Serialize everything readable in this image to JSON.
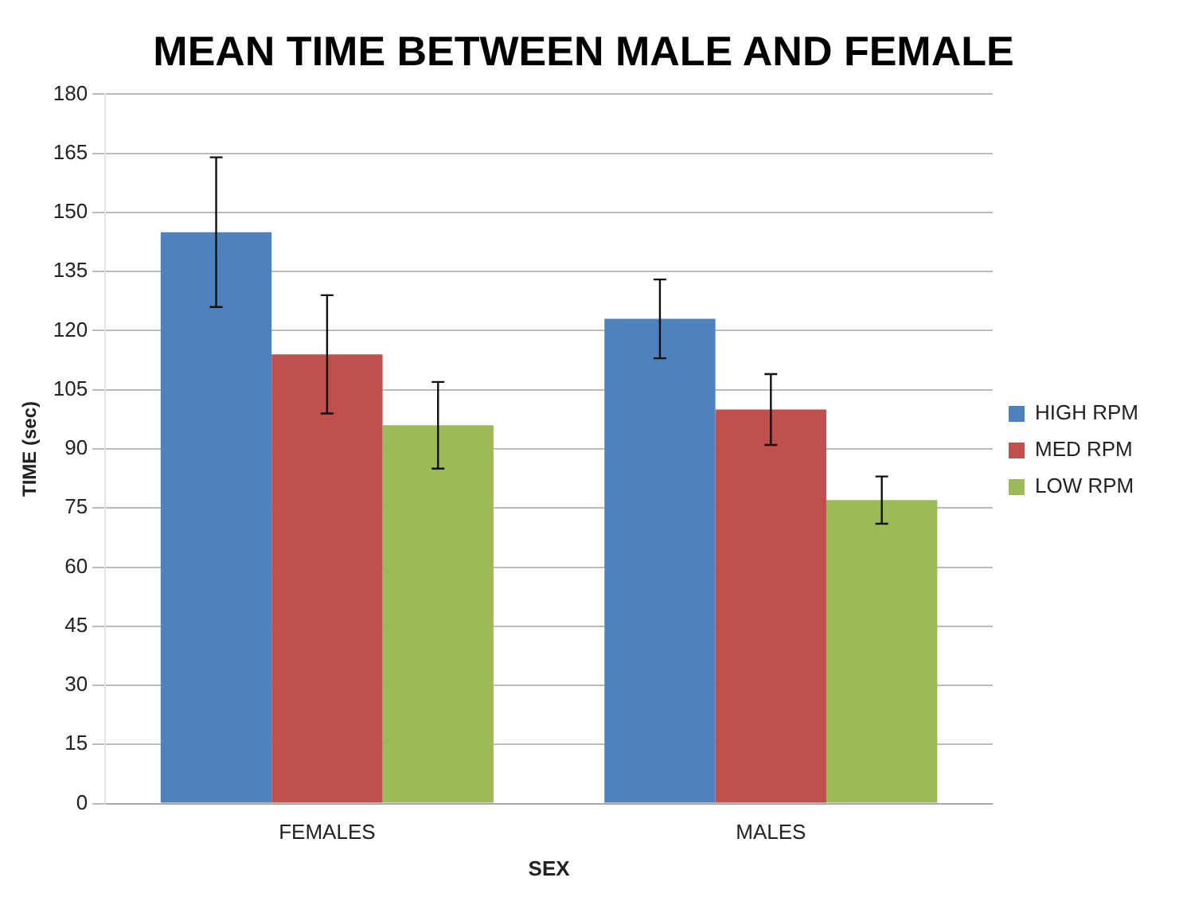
{
  "chart_data": {
    "type": "bar",
    "title": "MEAN TIME BETWEEN MALE AND FEMALE",
    "xlabel": "SEX",
    "ylabel": "TIME (sec)",
    "categories": [
      "FEMALES",
      "MALES"
    ],
    "series": [
      {
        "name": "HIGH RPM",
        "color": "#4f81bd",
        "values": [
          145,
          123
        ],
        "errors": [
          19,
          10
        ]
      },
      {
        "name": "MED RPM",
        "color": "#c0504d",
        "values": [
          114,
          100
        ],
        "errors": [
          15,
          9
        ]
      },
      {
        "name": "LOW RPM",
        "color": "#9bbb59",
        "values": [
          96,
          77
        ],
        "errors": [
          11,
          6
        ]
      }
    ],
    "ylim": [
      0,
      180
    ],
    "yticks": [
      0,
      15,
      30,
      45,
      60,
      75,
      90,
      105,
      120,
      135,
      150,
      165,
      180
    ],
    "grid": "y",
    "legend": "right"
  }
}
